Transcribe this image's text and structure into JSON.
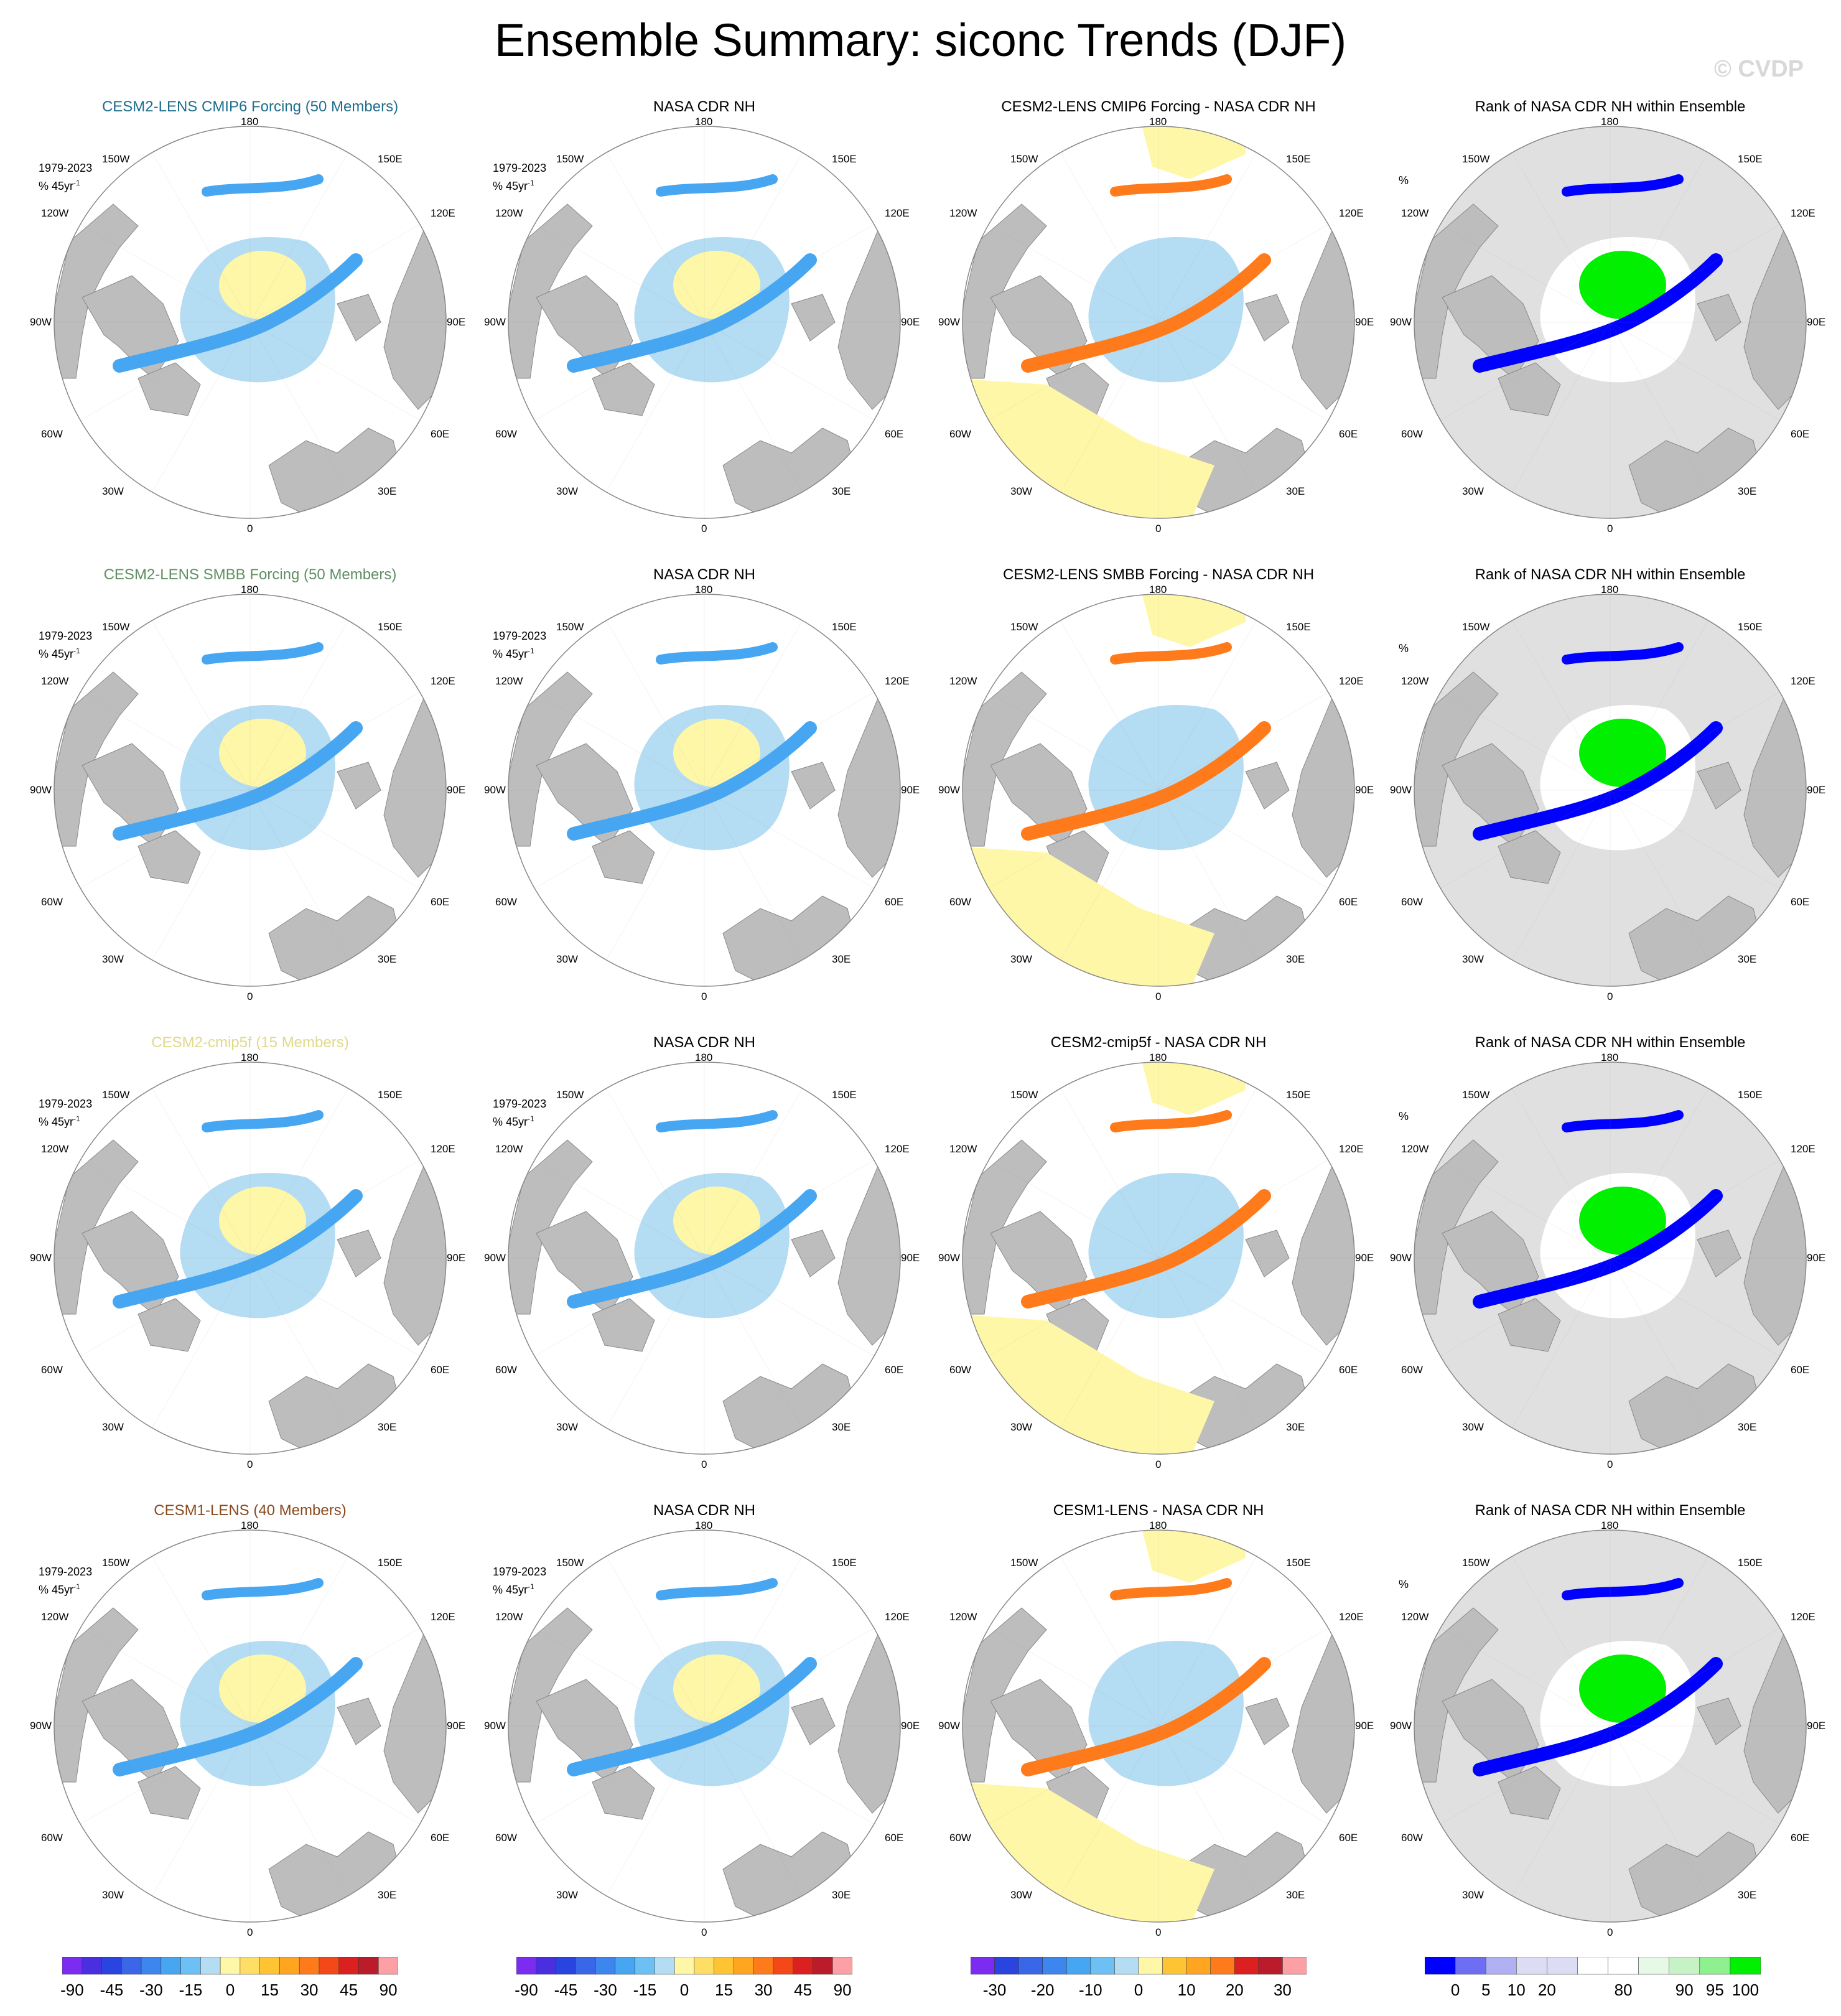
{
  "title": "Ensemble Summary: siconc Trends (DJF)",
  "watermark": "© CVDP",
  "colors": {
    "land": "#bdbdbd",
    "ocean": "#ffffff",
    "grid": "#9a9a9a"
  },
  "map_labels": {
    "top": "180",
    "bottom": "0",
    "tl": "150W",
    "tr": "150E",
    "ul": "120W",
    "ur": "120E",
    "l": "90W",
    "r": "90E",
    "ll": "60W",
    "lr": "60E",
    "bl": "30W",
    "br": "30E"
  },
  "period_label": "1979-2023",
  "units_label": "% 45yr",
  "units_sup": "-1",
  "rank_units": "%",
  "rows": [
    {
      "col1": "CESM2-LENS CMIP6 Forcing (50 Members)",
      "col1_color": "#1f6e8c",
      "col2": "NASA CDR NH",
      "col3": "CESM2-LENS CMIP6 Forcing - NASA CDR NH",
      "col4": "Rank of NASA CDR NH within Ensemble"
    },
    {
      "col1": "CESM2-LENS SMBB Forcing (50 Members)",
      "col1_color": "#5f8f63",
      "col2": "NASA CDR NH",
      "col3": "CESM2-LENS SMBB Forcing - NASA CDR NH",
      "col4": "Rank of NASA CDR NH within Ensemble"
    },
    {
      "col1": "CESM2-cmip5f (15 Members)",
      "col1_color": "#e0d98a",
      "col2": "NASA CDR NH",
      "col3": "CESM2-cmip5f - NASA CDR NH",
      "col4": "Rank of NASA CDR NH within Ensemble"
    },
    {
      "col1": "CESM1-LENS (40 Members)",
      "col1_color": "#8a4a1c",
      "col2": "NASA CDR NH",
      "col3": "CESM1-LENS - NASA CDR NH",
      "col4": "Rank of NASA CDR NH within Ensemble"
    }
  ],
  "colorbars": {
    "trend": {
      "colors": [
        "#7b2cf0",
        "#4b2ee0",
        "#2a44e0",
        "#3a66e8",
        "#3c86ee",
        "#46a6f2",
        "#6cc0f4",
        "#b4dcf2",
        "#fff7a8",
        "#ffde66",
        "#ffc433",
        "#ffa51f",
        "#ff7a1a",
        "#f44818",
        "#dc2020",
        "#bb1c2c",
        "#fca0a6"
      ],
      "ticks": [
        "-90",
        "-45",
        "-30",
        "-15",
        "0",
        "15",
        "30",
        "45",
        "90"
      ]
    },
    "diff": {
      "colors": [
        "#7b2cf0",
        "#2a44e0",
        "#3a66e8",
        "#3c86ee",
        "#46a6f2",
        "#6cc0f4",
        "#b4dcf2",
        "#fff7a8",
        "#ffc433",
        "#ffa51f",
        "#ff7a1a",
        "#dc2020",
        "#bb1c2c",
        "#fca0a6"
      ],
      "ticks": [
        "-30",
        "-20",
        "-10",
        "0",
        "10",
        "20",
        "30"
      ]
    },
    "rank": {
      "colors": [
        "#0000ff",
        "#6e6ef5",
        "#b0b0f2",
        "#dcdcf4",
        "#dcdcf4",
        "#ffffff",
        "#ffffff",
        "#e6f9e6",
        "#c6f2c6",
        "#8ef08e",
        "#00f000"
      ],
      "ticks": [
        "0",
        "5",
        "10",
        "20",
        "80",
        "90",
        "95",
        "100"
      ]
    }
  }
}
